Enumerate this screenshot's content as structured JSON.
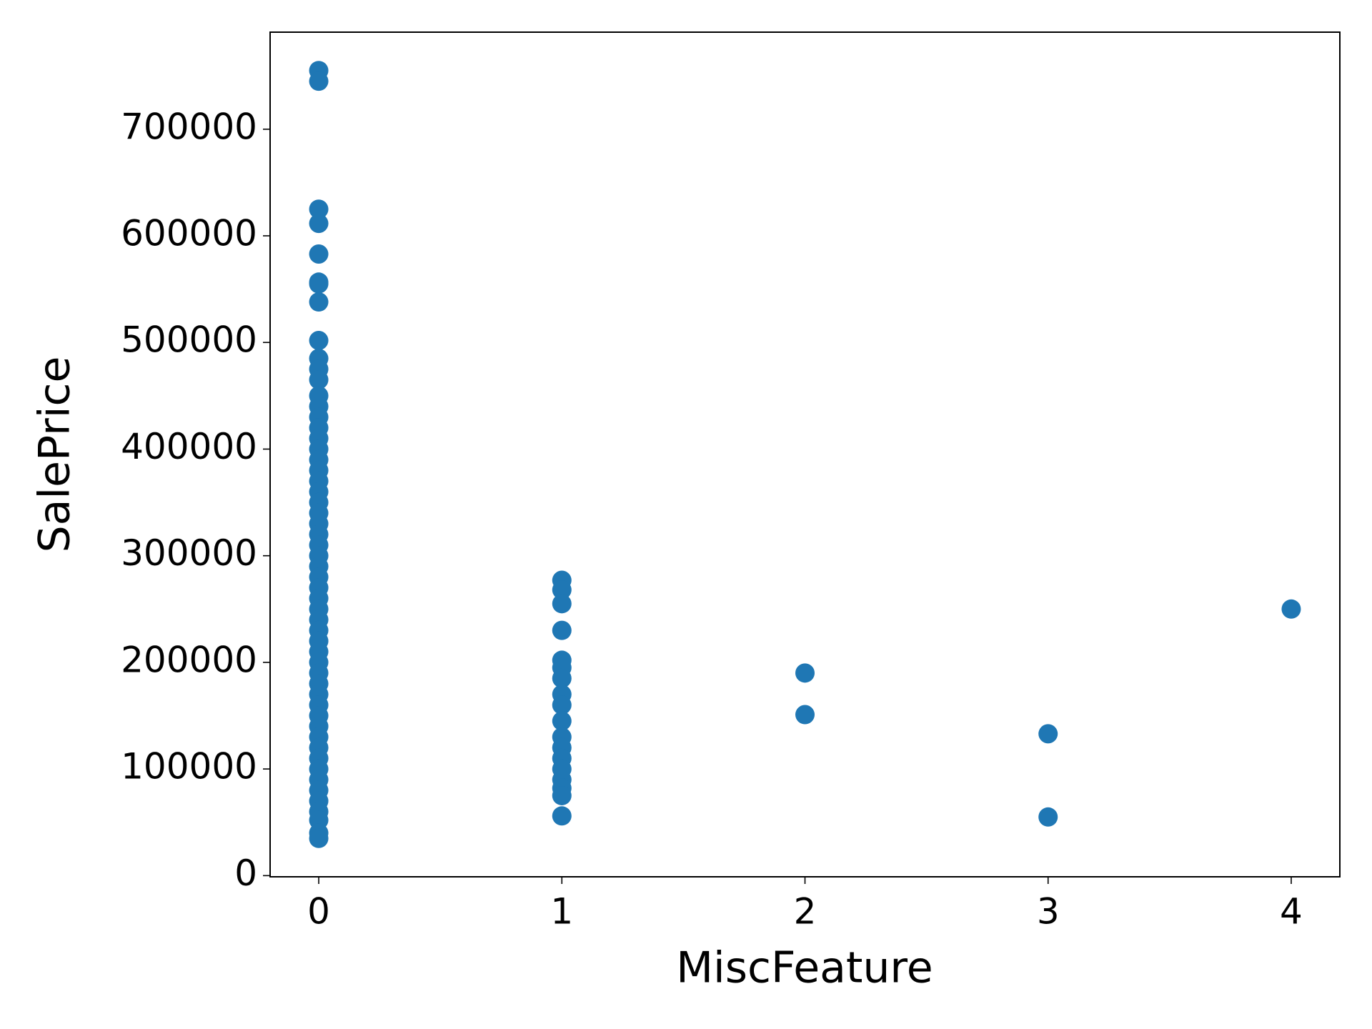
{
  "chart_data": {
    "type": "scatter",
    "xlabel": "MiscFeature",
    "ylabel": "SalePrice",
    "color": "#1f77b4",
    "x": [
      0,
      0,
      0,
      0,
      0,
      0,
      0,
      0,
      0,
      0,
      0,
      0,
      0,
      0,
      0,
      0,
      0,
      0,
      0,
      0,
      0,
      0,
      0,
      0,
      0,
      0,
      0,
      0,
      0,
      0,
      0,
      0,
      0,
      0,
      0,
      0,
      0,
      0,
      0,
      0,
      0,
      0,
      0,
      0,
      0,
      0,
      0,
      0,
      0,
      0,
      0,
      0,
      0,
      0,
      0,
      1,
      1,
      1,
      1,
      1,
      1,
      1,
      1,
      1,
      1,
      1,
      1,
      1,
      1,
      1,
      1,
      1,
      1,
      2,
      2,
      3,
      3,
      4
    ],
    "values": [
      755000,
      745000,
      625000,
      611657,
      582933,
      556581,
      555000,
      538000,
      501837,
      485000,
      475000,
      465000,
      450000,
      440000,
      430000,
      420000,
      410000,
      400000,
      390000,
      380000,
      370000,
      360000,
      350000,
      340000,
      330000,
      320000,
      310000,
      300000,
      290000,
      280000,
      270000,
      260000,
      250000,
      240000,
      230000,
      220000,
      210000,
      200000,
      190000,
      180000,
      170000,
      160000,
      150000,
      140000,
      130000,
      120000,
      110000,
      100000,
      90000,
      80000,
      70000,
      60000,
      52000,
      40000,
      34900,
      277000,
      268000,
      255000,
      230000,
      202000,
      195000,
      185000,
      170000,
      160000,
      145000,
      130000,
      120000,
      110000,
      100000,
      90000,
      82000,
      75000,
      56000,
      190000,
      151000,
      133000,
      55000,
      250000
    ],
    "xlim": [
      -0.2,
      4.2
    ],
    "ylim": [
      -1100,
      791000
    ],
    "xticks": [
      0,
      1,
      2,
      3,
      4
    ],
    "yticks": [
      0,
      100000,
      200000,
      300000,
      400000,
      500000,
      600000,
      700000
    ]
  }
}
